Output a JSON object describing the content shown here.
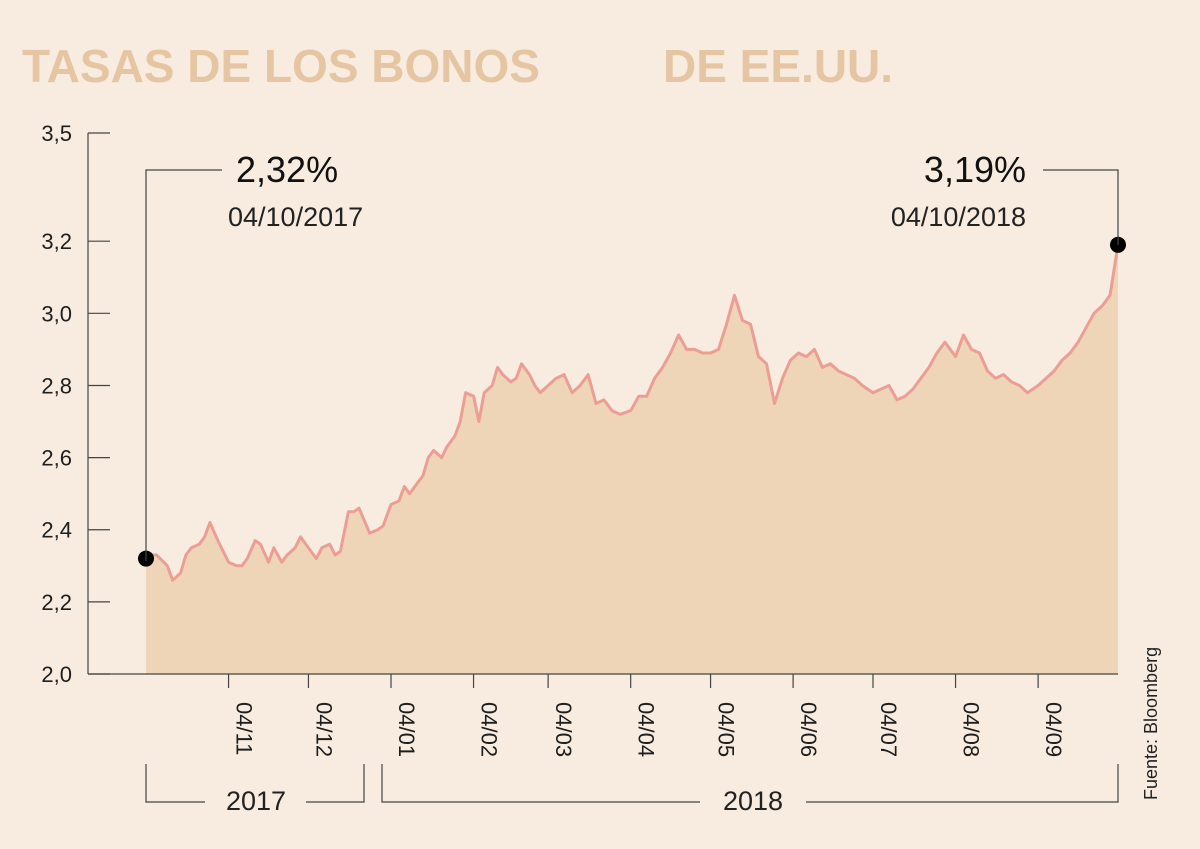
{
  "chart_data": {
    "type": "area",
    "title_part1": "TASAS DE LOS BONOS",
    "title_part2": "DE EE.UU.",
    "source": "Fuente: Bloomberg",
    "ylim": [
      2.0,
      3.5
    ],
    "yticks": [
      "2,0",
      "2,2",
      "2,4",
      "2,6",
      "2,8",
      "3,0",
      "3,2",
      "3,5"
    ],
    "yticks_values": [
      2.0,
      2.2,
      2.4,
      2.6,
      2.8,
      3.0,
      3.2,
      3.5
    ],
    "xticks": [
      "04/11",
      "04/12",
      "04/01",
      "04/02",
      "04/03",
      "04/04",
      "04/05",
      "04/06",
      "04/07",
      "04/08",
      "04/09"
    ],
    "xticks_dates": [
      "2017-11-04",
      "2017-12-04",
      "2018-01-04",
      "2018-02-04",
      "2018-03-04",
      "2018-04-04",
      "2018-05-04",
      "2018-06-04",
      "2018-07-04",
      "2018-08-04",
      "2018-09-04"
    ],
    "year_labels": [
      "2017",
      "2018"
    ],
    "start": {
      "value": "2,32%",
      "date": "04/10/2017",
      "x": "2017-10-04",
      "y": 2.32
    },
    "end": {
      "value": "3,19%",
      "date": "04/10/2018",
      "x": "2018-10-04",
      "y": 3.19
    },
    "colors": {
      "line": "#ec9e94",
      "fill": "#eed5b8",
      "title": "#e6c6a2"
    },
    "x": [
      "2017-10-04",
      "2017-10-06",
      "2017-10-08",
      "2017-10-12",
      "2017-10-14",
      "2017-10-17",
      "2017-10-19",
      "2017-10-21",
      "2017-10-24",
      "2017-10-26",
      "2017-10-28",
      "2017-10-31",
      "2017-11-02",
      "2017-11-04",
      "2017-11-07",
      "2017-11-09",
      "2017-11-11",
      "2017-11-14",
      "2017-11-16",
      "2017-11-19",
      "2017-11-21",
      "2017-11-24",
      "2017-11-26",
      "2017-11-29",
      "2017-12-01",
      "2017-12-04",
      "2017-12-07",
      "2017-12-09",
      "2017-12-12",
      "2017-12-14",
      "2017-12-16",
      "2017-12-19",
      "2017-12-21",
      "2017-12-23",
      "2017-12-27",
      "2017-12-30",
      "2018-01-01",
      "2018-01-04",
      "2018-01-07",
      "2018-01-09",
      "2018-01-11",
      "2018-01-14",
      "2018-01-16",
      "2018-01-18",
      "2018-01-20",
      "2018-01-23",
      "2018-01-25",
      "2018-01-28",
      "2018-01-30",
      "2018-02-01",
      "2018-02-04",
      "2018-02-06",
      "2018-02-08",
      "2018-02-11",
      "2018-02-13",
      "2018-02-15",
      "2018-02-18",
      "2018-02-20",
      "2018-02-22",
      "2018-02-25",
      "2018-02-27",
      "2018-03-01",
      "2018-03-04",
      "2018-03-07",
      "2018-03-10",
      "2018-03-13",
      "2018-03-16",
      "2018-03-19",
      "2018-03-22",
      "2018-03-25",
      "2018-03-28",
      "2018-03-31",
      "2018-04-04",
      "2018-04-07",
      "2018-04-10",
      "2018-04-13",
      "2018-04-16",
      "2018-04-19",
      "2018-04-22",
      "2018-04-25",
      "2018-04-28",
      "2018-05-01",
      "2018-05-04",
      "2018-05-07",
      "2018-05-10",
      "2018-05-13",
      "2018-05-16",
      "2018-05-19",
      "2018-05-22",
      "2018-05-25",
      "2018-05-28",
      "2018-05-31",
      "2018-06-03",
      "2018-06-06",
      "2018-06-09",
      "2018-06-12",
      "2018-06-15",
      "2018-06-18",
      "2018-06-21",
      "2018-06-24",
      "2018-06-27",
      "2018-06-30",
      "2018-07-04",
      "2018-07-07",
      "2018-07-10",
      "2018-07-13",
      "2018-07-16",
      "2018-07-19",
      "2018-07-22",
      "2018-07-25",
      "2018-07-28",
      "2018-07-31",
      "2018-08-04",
      "2018-08-07",
      "2018-08-10",
      "2018-08-13",
      "2018-08-16",
      "2018-08-19",
      "2018-08-22",
      "2018-08-25",
      "2018-08-28",
      "2018-08-31",
      "2018-09-04",
      "2018-09-07",
      "2018-09-10",
      "2018-09-13",
      "2018-09-16",
      "2018-09-19",
      "2018-09-22",
      "2018-09-25",
      "2018-09-28",
      "2018-10-01",
      "2018-10-04"
    ],
    "y": [
      2.32,
      2.33,
      2.33,
      2.3,
      2.26,
      2.28,
      2.33,
      2.35,
      2.36,
      2.38,
      2.42,
      2.37,
      2.34,
      2.31,
      2.3,
      2.3,
      2.32,
      2.37,
      2.36,
      2.31,
      2.35,
      2.31,
      2.33,
      2.35,
      2.38,
      2.35,
      2.32,
      2.35,
      2.36,
      2.33,
      2.34,
      2.45,
      2.45,
      2.46,
      2.39,
      2.4,
      2.41,
      2.47,
      2.48,
      2.52,
      2.5,
      2.53,
      2.55,
      2.6,
      2.62,
      2.6,
      2.63,
      2.66,
      2.7,
      2.78,
      2.77,
      2.7,
      2.78,
      2.8,
      2.85,
      2.83,
      2.81,
      2.82,
      2.86,
      2.83,
      2.8,
      2.78,
      2.8,
      2.82,
      2.83,
      2.78,
      2.8,
      2.83,
      2.75,
      2.76,
      2.73,
      2.72,
      2.73,
      2.77,
      2.77,
      2.82,
      2.85,
      2.89,
      2.94,
      2.9,
      2.9,
      2.89,
      2.89,
      2.9,
      2.97,
      3.05,
      2.98,
      2.97,
      2.88,
      2.86,
      2.75,
      2.82,
      2.87,
      2.89,
      2.88,
      2.9,
      2.85,
      2.86,
      2.84,
      2.83,
      2.82,
      2.8,
      2.78,
      2.79,
      2.8,
      2.76,
      2.77,
      2.79,
      2.82,
      2.85,
      2.89,
      2.92,
      2.88,
      2.94,
      2.9,
      2.89,
      2.84,
      2.82,
      2.83,
      2.81,
      2.8,
      2.78,
      2.8,
      2.82,
      2.84,
      2.87,
      2.89,
      2.92,
      2.96,
      3.0,
      3.02,
      3.05,
      3.19
    ]
  }
}
